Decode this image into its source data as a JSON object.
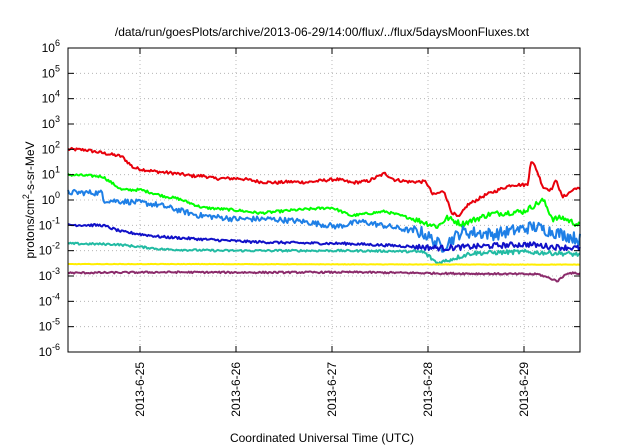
{
  "chart_data": {
    "type": "line",
    "title": "/data/run/goesPlots/archive/2013-06-29/14:00/flux/../flux/5daysMoonFluxes.txt",
    "xlabel": "Coordinated Universal Time (UTC)",
    "ylabel": {
      "before": "protons/cm",
      "sup": "2",
      "after": "-s-sr-MeV"
    },
    "yscale": "log",
    "ylim_exponents": [
      -6,
      6
    ],
    "ytick_exponents": [
      -6,
      -5,
      -4,
      -3,
      -2,
      -1,
      0,
      1,
      2,
      3,
      4,
      5,
      6
    ],
    "x_range_days": [
      "2013-06-24 06:00",
      "2013-06-29 14:00"
    ],
    "xticks": [
      "2013-6-25",
      "2013-6-26",
      "2013-6-27",
      "2013-6-28",
      "2013-6-29"
    ],
    "grid": true,
    "legend": "none",
    "series": [
      {
        "color": "#e8000b",
        "anchors": [
          [
            0.0,
            2.0
          ],
          [
            0.18,
            1.98
          ],
          [
            0.37,
            1.85
          ],
          [
            0.56,
            1.72
          ],
          [
            0.68,
            1.28
          ],
          [
            0.75,
            1.22
          ],
          [
            0.92,
            1.12
          ],
          [
            1.12,
            1.05
          ],
          [
            1.29,
            0.95
          ],
          [
            1.42,
            0.95
          ],
          [
            1.52,
            0.85
          ],
          [
            1.79,
            0.85
          ],
          [
            2.0,
            0.72
          ],
          [
            2.17,
            0.68
          ],
          [
            2.3,
            0.72
          ],
          [
            2.49,
            0.7
          ],
          [
            2.68,
            0.78
          ],
          [
            2.8,
            0.82
          ],
          [
            2.96,
            0.68
          ],
          [
            3.13,
            0.75
          ],
          [
            3.3,
            1.05
          ],
          [
            3.4,
            0.8
          ],
          [
            3.56,
            0.72
          ],
          [
            3.73,
            0.72
          ],
          [
            3.8,
            0.2
          ],
          [
            3.92,
            0.35
          ],
          [
            3.99,
            -0.45
          ],
          [
            4.07,
            -0.7
          ],
          [
            4.16,
            -0.2
          ],
          [
            4.35,
            0.2
          ],
          [
            4.62,
            0.6
          ],
          [
            4.79,
            0.6
          ],
          [
            4.82,
            1.55
          ],
          [
            4.87,
            1.3
          ],
          [
            4.95,
            0.5
          ],
          [
            5.03,
            0.4
          ],
          [
            5.09,
            0.8
          ],
          [
            5.12,
            0.4
          ],
          [
            5.15,
            0.1
          ],
          [
            5.3,
            0.5
          ],
          [
            5.33,
            0.4
          ]
        ]
      },
      {
        "color": "#00ff00",
        "anchors": [
          [
            0.0,
            1.0
          ],
          [
            0.36,
            0.93
          ],
          [
            0.56,
            0.4
          ],
          [
            0.76,
            0.4
          ],
          [
            1.0,
            0.15
          ],
          [
            1.15,
            0.05
          ],
          [
            1.4,
            -0.3
          ],
          [
            1.75,
            -0.4
          ],
          [
            2.0,
            -0.52
          ],
          [
            2.35,
            -0.4
          ],
          [
            2.75,
            -0.3
          ],
          [
            2.95,
            -0.62
          ],
          [
            3.3,
            -0.45
          ],
          [
            3.6,
            -0.75
          ],
          [
            3.85,
            -1.05
          ],
          [
            3.95,
            -0.7
          ],
          [
            4.1,
            -0.95
          ],
          [
            4.4,
            -0.55
          ],
          [
            4.75,
            -0.45
          ],
          [
            4.95,
            0.0
          ],
          [
            5.05,
            -0.75
          ],
          [
            5.15,
            -0.7
          ],
          [
            5.33,
            -1.0
          ]
        ]
      },
      {
        "color": "#1e7fe6",
        "anchors": [
          [
            0.0,
            0.3
          ],
          [
            0.36,
            0.28
          ],
          [
            0.36,
            0.0
          ],
          [
            0.75,
            -0.1
          ],
          [
            0.95,
            -0.2
          ],
          [
            1.35,
            -0.6
          ],
          [
            1.75,
            -0.75
          ],
          [
            2.1,
            -0.75
          ],
          [
            2.45,
            -0.85
          ],
          [
            2.8,
            -1.05
          ],
          [
            3.05,
            -0.85
          ],
          [
            3.35,
            -1.05
          ],
          [
            3.7,
            -1.3
          ],
          [
            3.9,
            -1.85
          ],
          [
            4.1,
            -1.25
          ],
          [
            4.45,
            -1.35
          ],
          [
            4.85,
            -1.05
          ],
          [
            5.05,
            -1.25
          ],
          [
            5.33,
            -1.55
          ]
        ]
      },
      {
        "color": "#1111c8",
        "anchors": [
          [
            0.0,
            -0.98
          ],
          [
            0.36,
            -1.0
          ],
          [
            0.56,
            -1.25
          ],
          [
            0.95,
            -1.45
          ],
          [
            1.4,
            -1.55
          ],
          [
            1.9,
            -1.65
          ],
          [
            2.45,
            -1.7
          ],
          [
            2.9,
            -1.72
          ],
          [
            3.4,
            -1.8
          ],
          [
            3.9,
            -1.9
          ],
          [
            4.45,
            -1.8
          ],
          [
            4.8,
            -1.75
          ],
          [
            5.05,
            -1.85
          ],
          [
            5.33,
            -1.9
          ]
        ]
      },
      {
        "color": "#22bba3",
        "anchors": [
          [
            0.0,
            -1.72
          ],
          [
            0.5,
            -1.75
          ],
          [
            1.0,
            -1.95
          ],
          [
            1.6,
            -2.0
          ],
          [
            2.2,
            -2.0
          ],
          [
            2.8,
            -2.0
          ],
          [
            3.4,
            -2.02
          ],
          [
            3.7,
            -2.05
          ],
          [
            3.85,
            -2.5
          ],
          [
            4.2,
            -2.1
          ],
          [
            4.7,
            -2.05
          ],
          [
            5.1,
            -2.1
          ],
          [
            5.33,
            -2.15
          ]
        ]
      },
      {
        "color": "#ffee00",
        "anchors": [
          [
            0.0,
            -2.53
          ],
          [
            1.5,
            -2.53
          ],
          [
            3.0,
            -2.54
          ],
          [
            4.5,
            -2.55
          ],
          [
            5.33,
            -2.55
          ]
        ]
      },
      {
        "color": "#8b2b6b",
        "anchors": [
          [
            0.0,
            -2.88
          ],
          [
            1.0,
            -2.85
          ],
          [
            2.0,
            -2.86
          ],
          [
            3.0,
            -2.85
          ],
          [
            4.0,
            -2.9
          ],
          [
            4.9,
            -2.93
          ],
          [
            5.1,
            -3.2
          ],
          [
            5.2,
            -2.88
          ],
          [
            5.33,
            -2.9
          ]
        ]
      }
    ]
  }
}
